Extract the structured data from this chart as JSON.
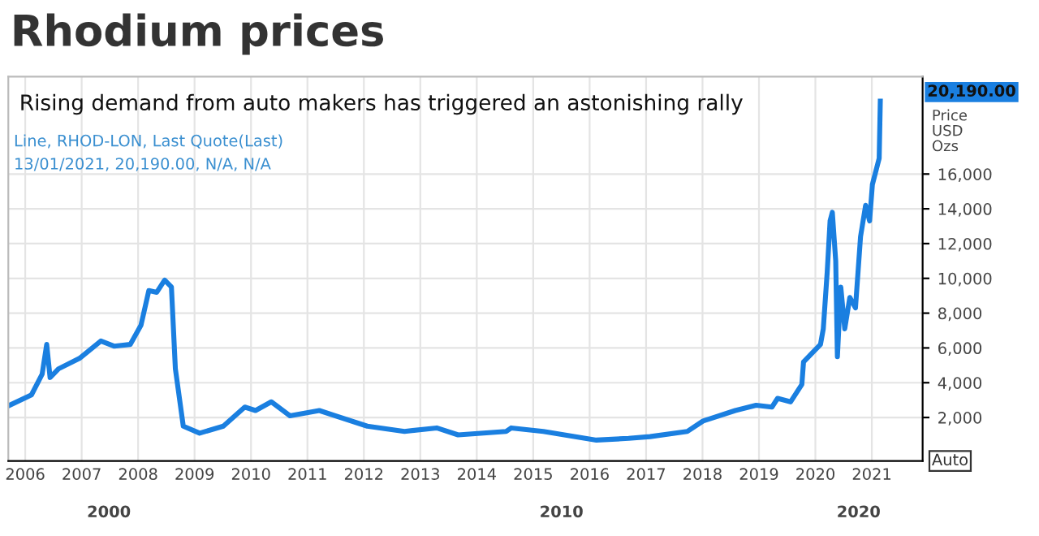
{
  "chart_data": {
    "type": "line",
    "title": "Rhodium prices",
    "subtitle": "Rising demand from auto makers has triggered an astonishing rally",
    "ylabel": "Price\nUSD\nOzs",
    "annotations": [
      "Line, RHOD-LON, Last Quote(Last)",
      "13/01/2021, 20,190.00, N/A, N/A",
      "Auto",
      "2000",
      "2010",
      "2020",
      "20,190.00"
    ],
    "x": [
      2005.72,
      2006.11,
      2006.3,
      2006.38,
      2006.44,
      2006.59,
      2006.96,
      2007.34,
      2007.58,
      2007.86,
      2008.05,
      2008.19,
      2008.33,
      2008.47,
      2008.59,
      2008.66,
      2008.8,
      2009.09,
      2009.51,
      2009.89,
      2010.08,
      2010.36,
      2010.69,
      2011.21,
      2012.06,
      2012.72,
      2013.29,
      2013.67,
      2014.52,
      2014.61,
      2015.18,
      2016.12,
      2016.69,
      2017.07,
      2017.73,
      2018.01,
      2018.58,
      2018.95,
      2019.23,
      2019.33,
      2019.56,
      2019.76,
      2019.79,
      2020.09,
      2020.14,
      2020.21,
      2020.26,
      2020.3,
      2020.36,
      2020.39,
      2020.45,
      2020.52,
      2020.61,
      2020.71,
      2020.8,
      2020.89,
      2020.96,
      2021.01,
      2021.13,
      2021.15
    ],
    "series": [
      {
        "color": "#1a7fe0",
        "values": [
          2700,
          3300,
          4500,
          6200,
          4300,
          4800,
          5400,
          6400,
          6100,
          6200,
          7300,
          9300,
          9200,
          9900,
          9500,
          4800,
          1500,
          1100,
          1500,
          2600,
          2400,
          2900,
          2100,
          2400,
          1500,
          1200,
          1400,
          1000,
          1200,
          1400,
          1200,
          700,
          800,
          900,
          1200,
          1800,
          2400,
          2700,
          2600,
          3100,
          2900,
          3900,
          5200,
          6200,
          7100,
          10400,
          13300,
          13800,
          11000,
          5500,
          9500,
          7100,
          8900,
          8300,
          12400,
          14200,
          13300,
          15400,
          16900,
          20190
        ]
      }
    ],
    "xlim": [
      2005.7,
      2021.9
    ],
    "ylim": [
      -500,
      21600
    ],
    "xticks": [
      {
        "value": 2006,
        "label": "2006"
      },
      {
        "value": 2007,
        "label": "2007"
      },
      {
        "value": 2008,
        "label": "2008"
      },
      {
        "value": 2009,
        "label": "2009"
      },
      {
        "value": 2010,
        "label": "2010"
      },
      {
        "value": 2011,
        "label": "2011"
      },
      {
        "value": 2012,
        "label": "2012"
      },
      {
        "value": 2013,
        "label": "2013"
      },
      {
        "value": 2014,
        "label": "2014"
      },
      {
        "value": 2015,
        "label": "2015"
      },
      {
        "value": 2016,
        "label": "2016"
      },
      {
        "value": 2017,
        "label": "2017"
      },
      {
        "value": 2018,
        "label": "2018"
      },
      {
        "value": 2019,
        "label": "2019"
      },
      {
        "value": 2020,
        "label": "2020"
      },
      {
        "value": 2021,
        "label": "2021"
      }
    ],
    "yticks": [
      {
        "value": 2000,
        "label": "2,000"
      },
      {
        "value": 4000,
        "label": "4,000"
      },
      {
        "value": 6000,
        "label": "6,000"
      },
      {
        "value": 8000,
        "label": "8,000"
      },
      {
        "value": 10000,
        "label": "10,000"
      },
      {
        "value": 12000,
        "label": "12,000"
      },
      {
        "value": 14000,
        "label": "14,000"
      },
      {
        "value": 16000,
        "label": "16,000"
      }
    ],
    "grid": true,
    "line_style": "solid",
    "marker": "none",
    "legend": false
  }
}
